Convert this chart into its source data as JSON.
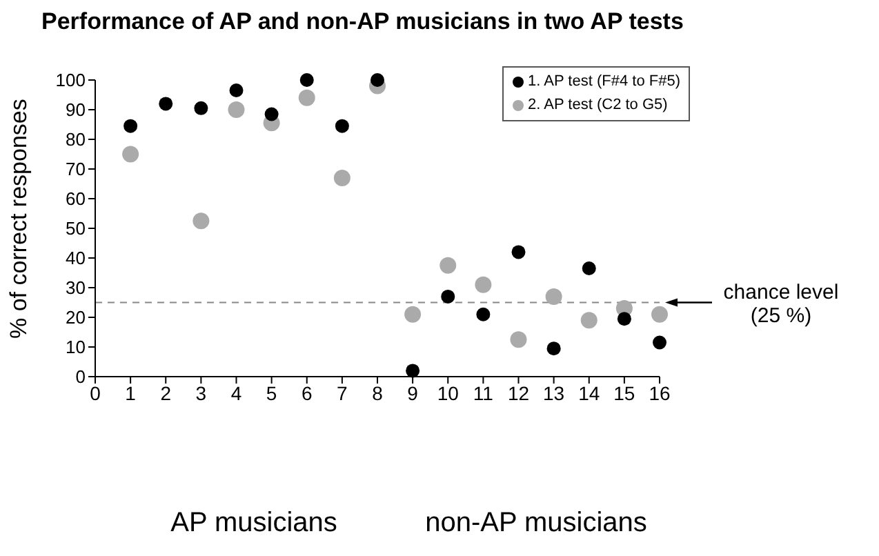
{
  "chart_data": {
    "type": "scatter",
    "title": "Performance of AP and non-AP musicians in two AP tests",
    "ylabel": "% of correct responses",
    "x": [
      1,
      2,
      3,
      4,
      5,
      6,
      7,
      8,
      9,
      10,
      11,
      12,
      13,
      14,
      15,
      16
    ],
    "series": [
      {
        "name": "1. AP test (F#4 to F#5)",
        "color": "#000000",
        "values": [
          84.5,
          92,
          90.5,
          96.5,
          88.5,
          100,
          84.5,
          100,
          2,
          27,
          21,
          42,
          9.5,
          36.5,
          19.5,
          11.5
        ]
      },
      {
        "name": "2. AP test (C2 to G5)",
        "color": "#aaaaaa",
        "values": [
          75,
          null,
          52.5,
          90,
          85.5,
          94,
          67,
          98,
          21,
          37.5,
          31,
          12.5,
          27,
          19,
          23,
          21
        ]
      }
    ],
    "xlim": [
      0,
      16
    ],
    "xticks": [
      0,
      1,
      2,
      3,
      4,
      5,
      6,
      7,
      8,
      9,
      10,
      11,
      12,
      13,
      14,
      15,
      16
    ],
    "ylim": [
      0,
      100
    ],
    "yticks": [
      0,
      10,
      20,
      30,
      40,
      50,
      60,
      70,
      80,
      90,
      100
    ],
    "ref_lines": [
      {
        "axis": "y",
        "value": 25,
        "label": "chance level\n(25 %)",
        "color": "#888888",
        "line_style": "dashed"
      }
    ],
    "annotations": [
      "AP musicians",
      "non-AP musicians"
    ],
    "grid": false,
    "legend": "top right",
    "marker": "circle"
  }
}
